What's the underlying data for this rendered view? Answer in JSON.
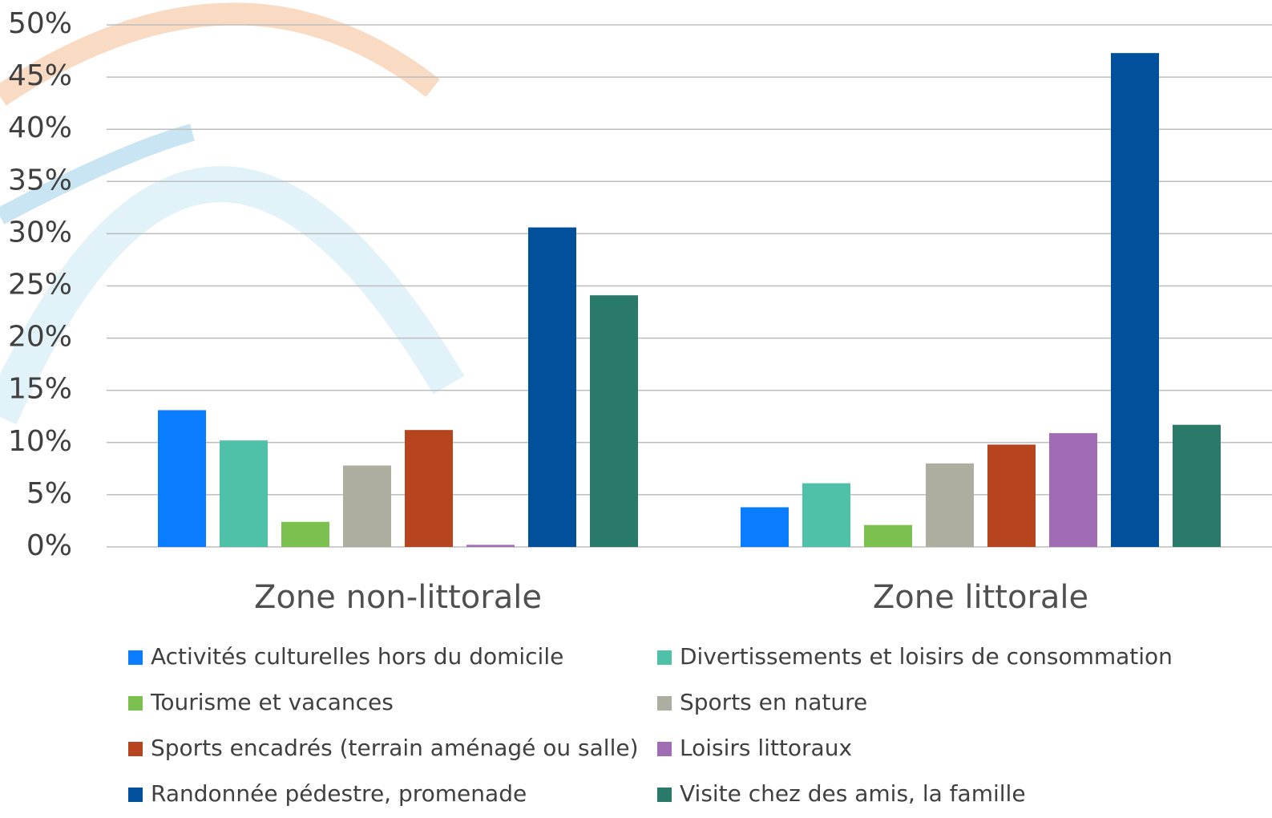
{
  "chart_data": {
    "type": "bar",
    "categories": [
      "Zone non-littorale",
      "Zone littorale"
    ],
    "series": [
      {
        "name": "Activités culturelles hors du domicile",
        "color": "#0a7cff",
        "values": [
          13.1,
          3.8
        ]
      },
      {
        "name": "Divertissements et loisirs de consommation",
        "color": "#4fc1a9",
        "values": [
          10.2,
          6.1
        ]
      },
      {
        "name": "Tourisme et vacances",
        "color": "#7cc04f",
        "values": [
          2.4,
          2.1
        ]
      },
      {
        "name": "Sports en nature",
        "color": "#aeaea0",
        "values": [
          7.8,
          8.0
        ]
      },
      {
        "name": "Sports encadrés (terrain aménagé ou salle)",
        "color": "#b5441f",
        "values": [
          11.2,
          9.8
        ]
      },
      {
        "name": "Loisirs littoraux",
        "color": "#a06cb4",
        "values": [
          0.2,
          10.9
        ]
      },
      {
        "name": "Randonnée pédestre, promenade",
        "color": "#00509b",
        "values": [
          30.6,
          47.3
        ]
      },
      {
        "name": "Visite chez des amis, la famille",
        "color": "#2a7a6a",
        "values": [
          24.1,
          11.7
        ]
      }
    ],
    "ylim": [
      0,
      50
    ],
    "yticks": [
      {
        "value": 0,
        "label": "0%"
      },
      {
        "value": 5,
        "label": "5%"
      },
      {
        "value": 10,
        "label": "10%"
      },
      {
        "value": 15,
        "label": "15%"
      },
      {
        "value": 20,
        "label": "20%"
      },
      {
        "value": 25,
        "label": "25%"
      },
      {
        "value": 30,
        "label": "30%"
      },
      {
        "value": 35,
        "label": "35%"
      },
      {
        "value": 40,
        "label": "40%"
      },
      {
        "value": 45,
        "label": "45%"
      },
      {
        "value": 50,
        "label": "50%"
      }
    ],
    "grid": true
  }
}
